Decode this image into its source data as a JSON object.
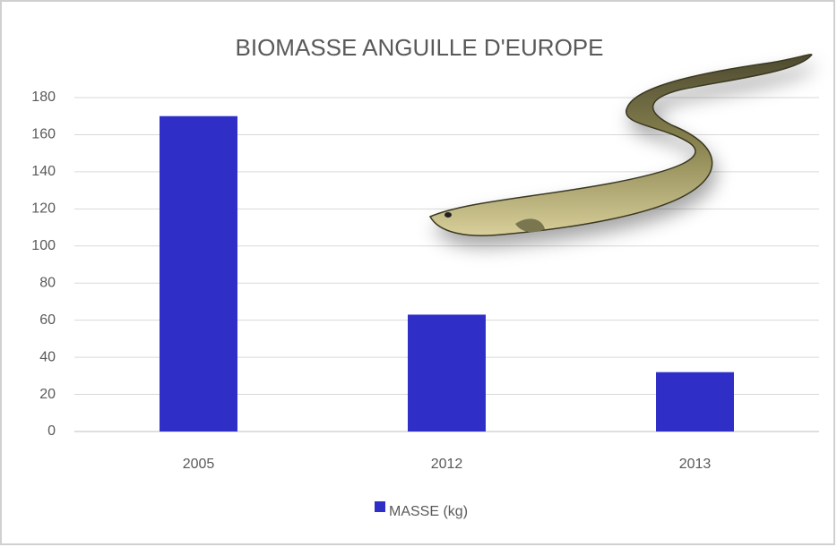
{
  "chart_data": {
    "type": "bar",
    "title": "BIOMASSE ANGUILLE D'EUROPE",
    "categories": [
      "2005",
      "2012",
      "2013"
    ],
    "series": [
      {
        "name": "MASSE (kg)",
        "color": "#2f2fc8",
        "values": [
          170,
          63,
          32
        ]
      }
    ],
    "ylim": [
      0,
      180
    ],
    "yticks": [
      0,
      20,
      40,
      60,
      80,
      100,
      120,
      140,
      160,
      180
    ],
    "grid": true,
    "legend": "bottom"
  }
}
